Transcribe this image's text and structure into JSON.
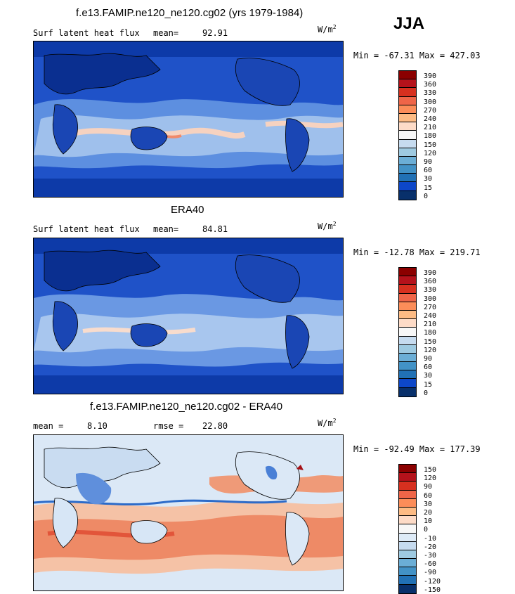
{
  "season": "JJA",
  "panels": [
    {
      "title": "f.e13.FAMIP.ne120_ne120.cg02 (yrs 1979-1984)",
      "left_label": "Surf latent heat flux",
      "stat_label": "mean=",
      "stat_value": "92.91",
      "units_base": "W/m",
      "units_exp": "2",
      "minmax": "Min = -67.31 Max = 427.03",
      "levels": [
        "390",
        "360",
        "330",
        "300",
        "270",
        "240",
        "210",
        "180",
        "150",
        "120",
        "90",
        "60",
        "30",
        "15",
        "0"
      ],
      "colors": [
        "#8b0000",
        "#b5121b",
        "#d7301f",
        "#ef6548",
        "#fc8d59",
        "#fdbb84",
        "#fddbc7",
        "#f7f7f7",
        "#c6dbef",
        "#9ecae1",
        "#6baed6",
        "#4292c6",
        "#2171b5",
        "#0d47c9",
        "#08306b"
      ]
    },
    {
      "title": "ERA40",
      "left_label": "Surf latent heat flux",
      "stat_label": "mean=",
      "stat_value": "84.81",
      "units_base": "W/m",
      "units_exp": "2",
      "minmax": "Min = -12.78 Max = 219.71",
      "levels": [
        "390",
        "360",
        "330",
        "300",
        "270",
        "240",
        "210",
        "180",
        "150",
        "120",
        "90",
        "60",
        "30",
        "15",
        "0"
      ],
      "colors": [
        "#8b0000",
        "#b5121b",
        "#d7301f",
        "#ef6548",
        "#fc8d59",
        "#fdbb84",
        "#fddbc7",
        "#f7f7f7",
        "#c6dbef",
        "#9ecae1",
        "#6baed6",
        "#4292c6",
        "#2171b5",
        "#0d47c9",
        "#08306b"
      ]
    },
    {
      "title": "f.e13.FAMIP.ne120_ne120.cg02 - ERA40",
      "left_label": "mean =",
      "left_value": "8.10",
      "stat_label": "rmse =",
      "stat_value": "22.80",
      "units_base": "W/m",
      "units_exp": "2",
      "minmax": "Min = -92.49 Max = 177.39",
      "levels": [
        "150",
        "120",
        "90",
        "60",
        "30",
        "20",
        "10",
        "0",
        "-10",
        "-20",
        "-30",
        "-60",
        "-90",
        "-120",
        "-150"
      ],
      "colors": [
        "#8b0000",
        "#b5121b",
        "#d7301f",
        "#ef6548",
        "#fc8d59",
        "#fdbb84",
        "#fddbc7",
        "#f7f7f7",
        "#deebf7",
        "#c6dbef",
        "#9ecae1",
        "#6baed6",
        "#4292c6",
        "#2171b5",
        "#08306b"
      ]
    }
  ]
}
